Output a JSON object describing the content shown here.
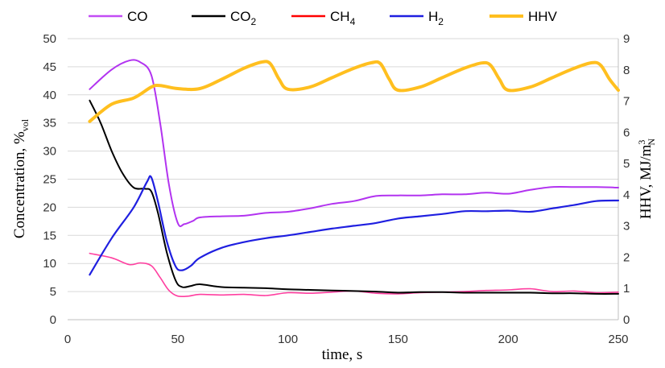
{
  "chart_data": {
    "type": "line",
    "xlabel": "time, s",
    "ylabel": {
      "main": "Concentration, %",
      "sub": "vol"
    },
    "y2label": {
      "main": "HHV, MJ/m",
      "sup": "3",
      "sub": "N"
    },
    "xlim": [
      0,
      250
    ],
    "ylim": [
      0,
      50
    ],
    "y2lim": [
      0,
      9
    ],
    "xticks": [
      "0",
      "50",
      "100",
      "150",
      "200",
      "250"
    ],
    "yticks": [
      "0",
      "5",
      "10",
      "15",
      "20",
      "25",
      "30",
      "35",
      "40",
      "45",
      "50"
    ],
    "y2ticks": [
      "0",
      "1",
      "2",
      "3",
      "4",
      "5",
      "6",
      "7",
      "8",
      "9"
    ],
    "grid": true,
    "legend_position": "top",
    "series": [
      {
        "name": "CO",
        "legend_main": "CO",
        "legend_sub": "",
        "color": "#b233f0",
        "axis": "left",
        "width": 2,
        "points": [
          [
            10,
            41
          ],
          [
            20,
            44.5
          ],
          [
            28,
            46.1
          ],
          [
            33,
            45.8
          ],
          [
            38,
            43.5
          ],
          [
            42,
            35
          ],
          [
            46,
            24
          ],
          [
            50,
            17.2
          ],
          [
            53,
            17
          ],
          [
            57,
            17.6
          ],
          [
            60,
            18.2
          ],
          [
            70,
            18.4
          ],
          [
            80,
            18.5
          ],
          [
            90,
            19
          ],
          [
            100,
            19.2
          ],
          [
            110,
            19.8
          ],
          [
            120,
            20.6
          ],
          [
            130,
            21.1
          ],
          [
            140,
            22
          ],
          [
            150,
            22.1
          ],
          [
            160,
            22.1
          ],
          [
            170,
            22.3
          ],
          [
            180,
            22.3
          ],
          [
            190,
            22.6
          ],
          [
            200,
            22.4
          ],
          [
            210,
            23.1
          ],
          [
            220,
            23.6
          ],
          [
            230,
            23.6
          ],
          [
            240,
            23.6
          ],
          [
            250,
            23.5
          ]
        ]
      },
      {
        "name": "CO2",
        "legend_main": "CO",
        "legend_sub": "2",
        "color": "#000000",
        "axis": "left",
        "width": 2,
        "points": [
          [
            10,
            39
          ],
          [
            15,
            35
          ],
          [
            20,
            30
          ],
          [
            25,
            26
          ],
          [
            30,
            23.5
          ],
          [
            35,
            23.3
          ],
          [
            38,
            22.8
          ],
          [
            41,
            19
          ],
          [
            45,
            12
          ],
          [
            49,
            7
          ],
          [
            52,
            5.8
          ],
          [
            56,
            6
          ],
          [
            60,
            6.3
          ],
          [
            70,
            5.8
          ],
          [
            80,
            5.7
          ],
          [
            90,
            5.6
          ],
          [
            100,
            5.4
          ],
          [
            110,
            5.3
          ],
          [
            120,
            5.2
          ],
          [
            130,
            5.1
          ],
          [
            140,
            5.0
          ],
          [
            150,
            4.8
          ],
          [
            160,
            4.9
          ],
          [
            170,
            4.9
          ],
          [
            180,
            4.8
          ],
          [
            190,
            4.8
          ],
          [
            200,
            4.8
          ],
          [
            210,
            4.8
          ],
          [
            220,
            4.7
          ],
          [
            230,
            4.7
          ],
          [
            240,
            4.6
          ],
          [
            250,
            4.6
          ]
        ]
      },
      {
        "name": "CH4",
        "legend_main": "CH",
        "legend_sub": "4",
        "color": "#ff3fa0",
        "axis": "left",
        "width": 1.6,
        "points": [
          [
            10,
            11.8
          ],
          [
            20,
            11
          ],
          [
            28,
            9.8
          ],
          [
            33,
            10.1
          ],
          [
            38,
            9.6
          ],
          [
            42,
            7.5
          ],
          [
            46,
            5.2
          ],
          [
            50,
            4.2
          ],
          [
            55,
            4.2
          ],
          [
            60,
            4.5
          ],
          [
            70,
            4.4
          ],
          [
            80,
            4.5
          ],
          [
            90,
            4.3
          ],
          [
            100,
            4.8
          ],
          [
            110,
            4.7
          ],
          [
            120,
            4.9
          ],
          [
            130,
            5.1
          ],
          [
            140,
            4.7
          ],
          [
            150,
            4.6
          ],
          [
            160,
            4.8
          ],
          [
            170,
            4.9
          ],
          [
            180,
            5.0
          ],
          [
            190,
            5.2
          ],
          [
            200,
            5.3
          ],
          [
            210,
            5.5
          ],
          [
            220,
            5.0
          ],
          [
            230,
            5.1
          ],
          [
            240,
            4.8
          ],
          [
            250,
            4.9
          ]
        ]
      },
      {
        "name": "H2",
        "legend_main": "H",
        "legend_sub": "2",
        "color": "#1f1fe0",
        "axis": "left",
        "width": 2.2,
        "points": [
          [
            10,
            8
          ],
          [
            20,
            14.5
          ],
          [
            30,
            20
          ],
          [
            36,
            24.5
          ],
          [
            38,
            25.3
          ],
          [
            41,
            21
          ],
          [
            45,
            14
          ],
          [
            49,
            9.5
          ],
          [
            52,
            8.8
          ],
          [
            56,
            9.6
          ],
          [
            60,
            11
          ],
          [
            70,
            12.8
          ],
          [
            80,
            13.8
          ],
          [
            90,
            14.5
          ],
          [
            100,
            15
          ],
          [
            110,
            15.6
          ],
          [
            120,
            16.2
          ],
          [
            130,
            16.7
          ],
          [
            140,
            17.2
          ],
          [
            150,
            18
          ],
          [
            160,
            18.4
          ],
          [
            170,
            18.8
          ],
          [
            180,
            19.3
          ],
          [
            190,
            19.3
          ],
          [
            200,
            19.4
          ],
          [
            210,
            19.2
          ],
          [
            220,
            19.8
          ],
          [
            230,
            20.4
          ],
          [
            240,
            21.1
          ],
          [
            250,
            21.2
          ]
        ]
      },
      {
        "name": "HHV",
        "legend_main": "HHV",
        "legend_sub": "",
        "color": "#ffbf1f",
        "axis": "right",
        "width": 4,
        "points": [
          [
            10,
            6.35
          ],
          [
            20,
            6.9
          ],
          [
            30,
            7.1
          ],
          [
            38,
            7.45
          ],
          [
            42,
            7.5
          ],
          [
            50,
            7.4
          ],
          [
            60,
            7.4
          ],
          [
            70,
            7.7
          ],
          [
            80,
            8.05
          ],
          [
            88,
            8.25
          ],
          [
            92,
            8.2
          ],
          [
            96,
            7.7
          ],
          [
            100,
            7.38
          ],
          [
            110,
            7.45
          ],
          [
            120,
            7.75
          ],
          [
            130,
            8.05
          ],
          [
            138,
            8.23
          ],
          [
            142,
            8.2
          ],
          [
            146,
            7.7
          ],
          [
            150,
            7.35
          ],
          [
            160,
            7.45
          ],
          [
            170,
            7.75
          ],
          [
            180,
            8.05
          ],
          [
            188,
            8.22
          ],
          [
            192,
            8.15
          ],
          [
            196,
            7.7
          ],
          [
            200,
            7.35
          ],
          [
            210,
            7.45
          ],
          [
            220,
            7.75
          ],
          [
            230,
            8.05
          ],
          [
            238,
            8.23
          ],
          [
            242,
            8.15
          ],
          [
            246,
            7.7
          ],
          [
            250,
            7.35
          ]
        ]
      }
    ]
  }
}
